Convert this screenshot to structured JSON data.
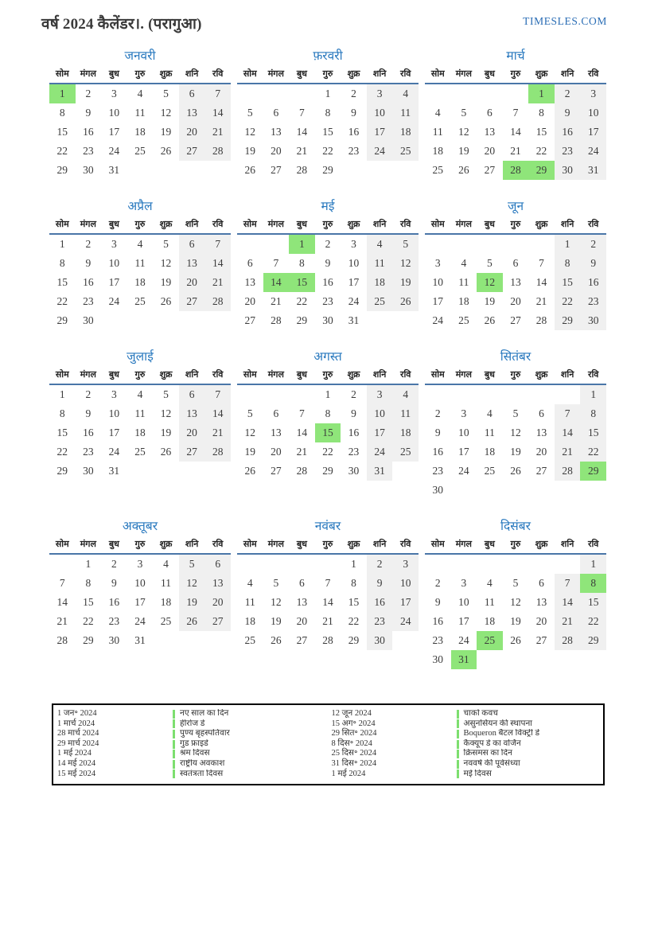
{
  "header": {
    "title": "वर्ष 2024 कैलेंडर।. (परागुआ)",
    "brand": "TIMESLES.COM"
  },
  "colors": {
    "month_title_blue": "#2878be",
    "brand_blue": "#2a6db5",
    "header_rule_blue": "#4a76a8",
    "weekend_bg": "#f0f0f0",
    "holiday_bg": "#8fe57a",
    "legend_marker_green": "#7ddf6f"
  },
  "day_headers": [
    "सोम",
    "मंगल",
    "बुध",
    "गुरु",
    "शुक्र",
    "शनि",
    "रवि"
  ],
  "months": [
    {
      "name": "जनवरी",
      "holidays": [
        1
      ],
      "weeks": [
        [
          "1",
          "2",
          "3",
          "4",
          "5",
          "6",
          "7"
        ],
        [
          "8",
          "9",
          "10",
          "11",
          "12",
          "13",
          "14"
        ],
        [
          "15",
          "16",
          "17",
          "18",
          "19",
          "20",
          "21"
        ],
        [
          "22",
          "23",
          "24",
          "25",
          "26",
          "27",
          "28"
        ],
        [
          "29",
          "30",
          "31",
          "",
          "",
          "",
          ""
        ]
      ]
    },
    {
      "name": "फ़रवरी",
      "holidays": [],
      "weeks": [
        [
          "",
          "",
          "",
          "1",
          "2",
          "3",
          "4"
        ],
        [
          "5",
          "6",
          "7",
          "8",
          "9",
          "10",
          "11"
        ],
        [
          "12",
          "13",
          "14",
          "15",
          "16",
          "17",
          "18"
        ],
        [
          "19",
          "20",
          "21",
          "22",
          "23",
          "24",
          "25"
        ],
        [
          "26",
          "27",
          "28",
          "29",
          "",
          "",
          ""
        ]
      ]
    },
    {
      "name": "मार्च",
      "holidays": [
        1,
        28,
        29
      ],
      "weeks": [
        [
          "",
          "",
          "",
          "",
          "1",
          "2",
          "3"
        ],
        [
          "4",
          "5",
          "6",
          "7",
          "8",
          "9",
          "10"
        ],
        [
          "11",
          "12",
          "13",
          "14",
          "15",
          "16",
          "17"
        ],
        [
          "18",
          "19",
          "20",
          "21",
          "22",
          "23",
          "24"
        ],
        [
          "25",
          "26",
          "27",
          "28",
          "29",
          "30",
          "31"
        ]
      ]
    },
    {
      "name": "अप्रैल",
      "holidays": [],
      "weeks": [
        [
          "1",
          "2",
          "3",
          "4",
          "5",
          "6",
          "7"
        ],
        [
          "8",
          "9",
          "10",
          "11",
          "12",
          "13",
          "14"
        ],
        [
          "15",
          "16",
          "17",
          "18",
          "19",
          "20",
          "21"
        ],
        [
          "22",
          "23",
          "24",
          "25",
          "26",
          "27",
          "28"
        ],
        [
          "29",
          "30",
          "",
          "",
          "",
          "",
          ""
        ]
      ]
    },
    {
      "name": "मई",
      "holidays": [
        1,
        14,
        15
      ],
      "weeks": [
        [
          "",
          "",
          "1",
          "2",
          "3",
          "4",
          "5"
        ],
        [
          "6",
          "7",
          "8",
          "9",
          "10",
          "11",
          "12"
        ],
        [
          "13",
          "14",
          "15",
          "16",
          "17",
          "18",
          "19"
        ],
        [
          "20",
          "21",
          "22",
          "23",
          "24",
          "25",
          "26"
        ],
        [
          "27",
          "28",
          "29",
          "30",
          "31",
          "",
          ""
        ]
      ]
    },
    {
      "name": "जून",
      "holidays": [
        12
      ],
      "weeks": [
        [
          "",
          "",
          "",
          "",
          "",
          "1",
          "2"
        ],
        [
          "3",
          "4",
          "5",
          "6",
          "7",
          "8",
          "9"
        ],
        [
          "10",
          "11",
          "12",
          "13",
          "14",
          "15",
          "16"
        ],
        [
          "17",
          "18",
          "19",
          "20",
          "21",
          "22",
          "23"
        ],
        [
          "24",
          "25",
          "26",
          "27",
          "28",
          "29",
          "30"
        ]
      ]
    },
    {
      "name": "जुलाई",
      "holidays": [],
      "weeks": [
        [
          "1",
          "2",
          "3",
          "4",
          "5",
          "6",
          "7"
        ],
        [
          "8",
          "9",
          "10",
          "11",
          "12",
          "13",
          "14"
        ],
        [
          "15",
          "16",
          "17",
          "18",
          "19",
          "20",
          "21"
        ],
        [
          "22",
          "23",
          "24",
          "25",
          "26",
          "27",
          "28"
        ],
        [
          "29",
          "30",
          "31",
          "",
          "",
          "",
          ""
        ]
      ]
    },
    {
      "name": "अगस्त",
      "holidays": [
        15
      ],
      "weeks": [
        [
          "",
          "",
          "",
          "1",
          "2",
          "3",
          "4"
        ],
        [
          "5",
          "6",
          "7",
          "8",
          "9",
          "10",
          "11"
        ],
        [
          "12",
          "13",
          "14",
          "15",
          "16",
          "17",
          "18"
        ],
        [
          "19",
          "20",
          "21",
          "22",
          "23",
          "24",
          "25"
        ],
        [
          "26",
          "27",
          "28",
          "29",
          "30",
          "31",
          ""
        ]
      ]
    },
    {
      "name": "सितंबर",
      "holidays": [
        29
      ],
      "weeks": [
        [
          "",
          "",
          "",
          "",
          "",
          "",
          "1"
        ],
        [
          "2",
          "3",
          "4",
          "5",
          "6",
          "7",
          "8"
        ],
        [
          "9",
          "10",
          "11",
          "12",
          "13",
          "14",
          "15"
        ],
        [
          "16",
          "17",
          "18",
          "19",
          "20",
          "21",
          "22"
        ],
        [
          "23",
          "24",
          "25",
          "26",
          "27",
          "28",
          "29"
        ],
        [
          "30",
          "",
          "",
          "",
          "",
          "",
          ""
        ]
      ]
    },
    {
      "name": "अक्तूबर",
      "holidays": [],
      "weeks": [
        [
          "",
          "1",
          "2",
          "3",
          "4",
          "5",
          "6"
        ],
        [
          "7",
          "8",
          "9",
          "10",
          "11",
          "12",
          "13"
        ],
        [
          "14",
          "15",
          "16",
          "17",
          "18",
          "19",
          "20"
        ],
        [
          "21",
          "22",
          "23",
          "24",
          "25",
          "26",
          "27"
        ],
        [
          "28",
          "29",
          "30",
          "31",
          "",
          "",
          ""
        ]
      ]
    },
    {
      "name": "नवंबर",
      "holidays": [],
      "weeks": [
        [
          "",
          "",
          "",
          "",
          "1",
          "2",
          "3"
        ],
        [
          "4",
          "5",
          "6",
          "7",
          "8",
          "9",
          "10"
        ],
        [
          "11",
          "12",
          "13",
          "14",
          "15",
          "16",
          "17"
        ],
        [
          "18",
          "19",
          "20",
          "21",
          "22",
          "23",
          "24"
        ],
        [
          "25",
          "26",
          "27",
          "28",
          "29",
          "30",
          ""
        ]
      ]
    },
    {
      "name": "दिसंबर",
      "holidays": [
        8,
        25,
        31
      ],
      "weeks": [
        [
          "",
          "",
          "",
          "",
          "",
          "",
          "1"
        ],
        [
          "2",
          "3",
          "4",
          "5",
          "6",
          "7",
          "8"
        ],
        [
          "9",
          "10",
          "11",
          "12",
          "13",
          "14",
          "15"
        ],
        [
          "16",
          "17",
          "18",
          "19",
          "20",
          "21",
          "22"
        ],
        [
          "23",
          "24",
          "25",
          "26",
          "27",
          "28",
          "29"
        ],
        [
          "30",
          "31",
          "",
          "",
          "",
          "",
          ""
        ]
      ]
    }
  ],
  "legend": {
    "groups": [
      {
        "rows": [
          {
            "date": "1 जन॰ 2024",
            "name": "नए साल का दिन"
          },
          {
            "date": "1 मार्च 2024",
            "name": "हीरोज डे"
          },
          {
            "date": "28 मार्च 2024",
            "name": "पुण्य बृहस्पतिवार"
          },
          {
            "date": "29 मार्च 2024",
            "name": "गुड फ्राइडे"
          },
          {
            "date": "1 मई 2024",
            "name": "श्रम दिवस"
          },
          {
            "date": "14 मई 2024",
            "name": "राष्ट्रीय अवकाश"
          },
          {
            "date": "15 मई 2024",
            "name": "स्वतंत्रता दिवस"
          }
        ]
      },
      {
        "rows": [
          {
            "date": "12 जून 2024",
            "name": "चाको कवच"
          },
          {
            "date": "15 अग॰ 2024",
            "name": "असुनसियन की स्थापना"
          },
          {
            "date": "29 सित॰ 2024",
            "name": "Boqueron बैटल विक्ट्री डे"
          },
          {
            "date": "8 दिस॰ 2024",
            "name": "कैक्यूप डे का वर्जिन"
          },
          {
            "date": "25 दिस॰ 2024",
            "name": "क्रिसमस का दिन"
          },
          {
            "date": "31 दिस॰ 2024",
            "name": "नववर्ष की पूर्वसंध्या"
          },
          {
            "date": "1 मई 2024",
            "name": "मई दिवस"
          }
        ]
      }
    ]
  }
}
